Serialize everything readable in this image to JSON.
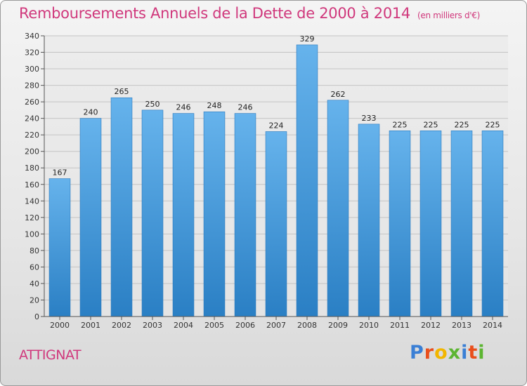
{
  "header": {
    "title": "Remboursements Annuels de la Dette de 2000 à 2014",
    "subtitle": "(en milliers d'€)"
  },
  "footer": {
    "city": "ATTIGNAT",
    "brand": "Proxiti",
    "brand_colors": [
      "#3a7fd5",
      "#e94e1b",
      "#f2b600",
      "#5cb531",
      "#3a7fd5",
      "#e94e1b",
      "#5cb531"
    ]
  },
  "chart_data": {
    "type": "bar",
    "categories": [
      "2000",
      "2001",
      "2002",
      "2003",
      "2004",
      "2005",
      "2006",
      "2007",
      "2008",
      "2009",
      "2010",
      "2011",
      "2012",
      "2013",
      "2014"
    ],
    "values": [
      167,
      240,
      265,
      250,
      246,
      248,
      246,
      224,
      329,
      262,
      233,
      225,
      225,
      225,
      225
    ],
    "title": "Remboursements Annuels de la Dette de 2000 à 2014",
    "ylim": [
      0,
      340
    ],
    "yticks": [
      0,
      20,
      40,
      60,
      80,
      100,
      120,
      140,
      160,
      180,
      200,
      220,
      240,
      260,
      280,
      300,
      320,
      340
    ],
    "grid": true,
    "bar_color_light": "#66b3ec",
    "bar_color_dark": "#2a7fc4"
  }
}
